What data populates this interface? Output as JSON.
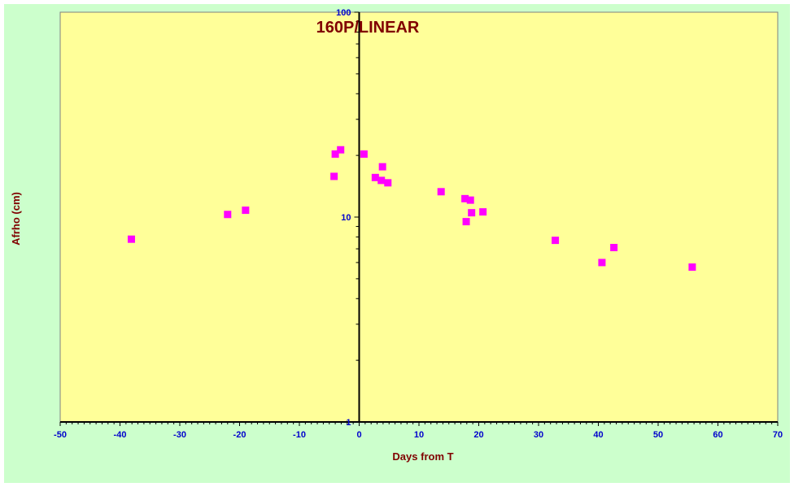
{
  "chart_data": {
    "type": "scatter",
    "title": "160P/LINEAR",
    "xlabel": "Days from  T",
    "ylabel": "Afrho (cm)",
    "xlim": [
      -50,
      70
    ],
    "ylim": [
      1,
      100
    ],
    "y_scale": "log",
    "x_ticks": [
      "-50",
      "-40",
      "-30",
      "-20",
      "-10",
      "0",
      "10",
      "20",
      "30",
      "40",
      "50",
      "60",
      "70"
    ],
    "y_ticks": [
      "1",
      "10",
      "100"
    ],
    "grid": false,
    "legend": "none",
    "series": [
      {
        "marker": "square",
        "color": "#ff00ff",
        "points": [
          {
            "x": -38.1,
            "y": 7.8
          },
          {
            "x": -22.0,
            "y": 10.3
          },
          {
            "x": -19.0,
            "y": 10.8
          },
          {
            "x": -4.2,
            "y": 15.8
          },
          {
            "x": -4.0,
            "y": 20.3
          },
          {
            "x": -3.1,
            "y": 21.3
          },
          {
            "x": 0.8,
            "y": 20.3
          },
          {
            "x": 2.7,
            "y": 15.6
          },
          {
            "x": 3.7,
            "y": 15.1
          },
          {
            "x": 3.9,
            "y": 17.6
          },
          {
            "x": 4.8,
            "y": 14.7
          },
          {
            "x": 13.7,
            "y": 13.3
          },
          {
            "x": 17.7,
            "y": 12.3
          },
          {
            "x": 18.6,
            "y": 12.1
          },
          {
            "x": 17.9,
            "y": 9.5
          },
          {
            "x": 18.8,
            "y": 10.5
          },
          {
            "x": 20.7,
            "y": 10.6
          },
          {
            "x": 32.8,
            "y": 7.7
          },
          {
            "x": 40.6,
            "y": 6.0
          },
          {
            "x": 42.6,
            "y": 7.1
          },
          {
            "x": 55.7,
            "y": 5.7
          }
        ]
      }
    ]
  },
  "colors": {
    "background": "#ccffcc",
    "plot_area": "#ffff99",
    "marker": "#ff00ff",
    "tick_labels": "#0000cc",
    "axis_titles": "#800000"
  }
}
